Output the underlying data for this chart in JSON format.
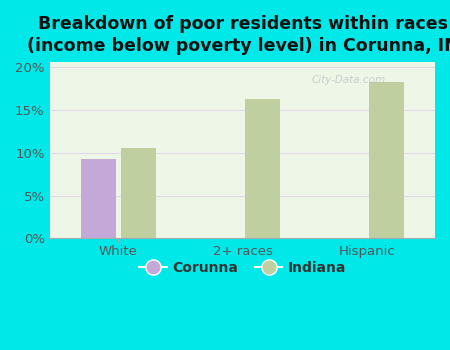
{
  "title": "Breakdown of poor residents within races\n(income below poverty level) in Corunna, IN",
  "categories": [
    "White",
    "2+ races",
    "Hispanic"
  ],
  "corunna_values": [
    9.3,
    0,
    0
  ],
  "indiana_values": [
    10.5,
    16.2,
    18.2
  ],
  "corunna_color": "#c4a8d8",
  "indiana_color": "#bfcfa0",
  "background_color": "#00e8e8",
  "plot_bg_top": "#e8f0e0",
  "plot_bg_bottom": "#f5faf0",
  "ylim": [
    0,
    20.5
  ],
  "yticks": [
    0,
    5,
    10,
    15,
    20
  ],
  "ytick_labels": [
    "0%",
    "5%",
    "10%",
    "15%",
    "20%"
  ],
  "bar_width": 0.28,
  "title_fontsize": 12.5,
  "legend_labels": [
    "Corunna",
    "Indiana"
  ],
  "grid_color": "#e0d8e8",
  "watermark": "City-Data.com",
  "xlabel_fontsize": 10,
  "ylabel_fontsize": 10
}
